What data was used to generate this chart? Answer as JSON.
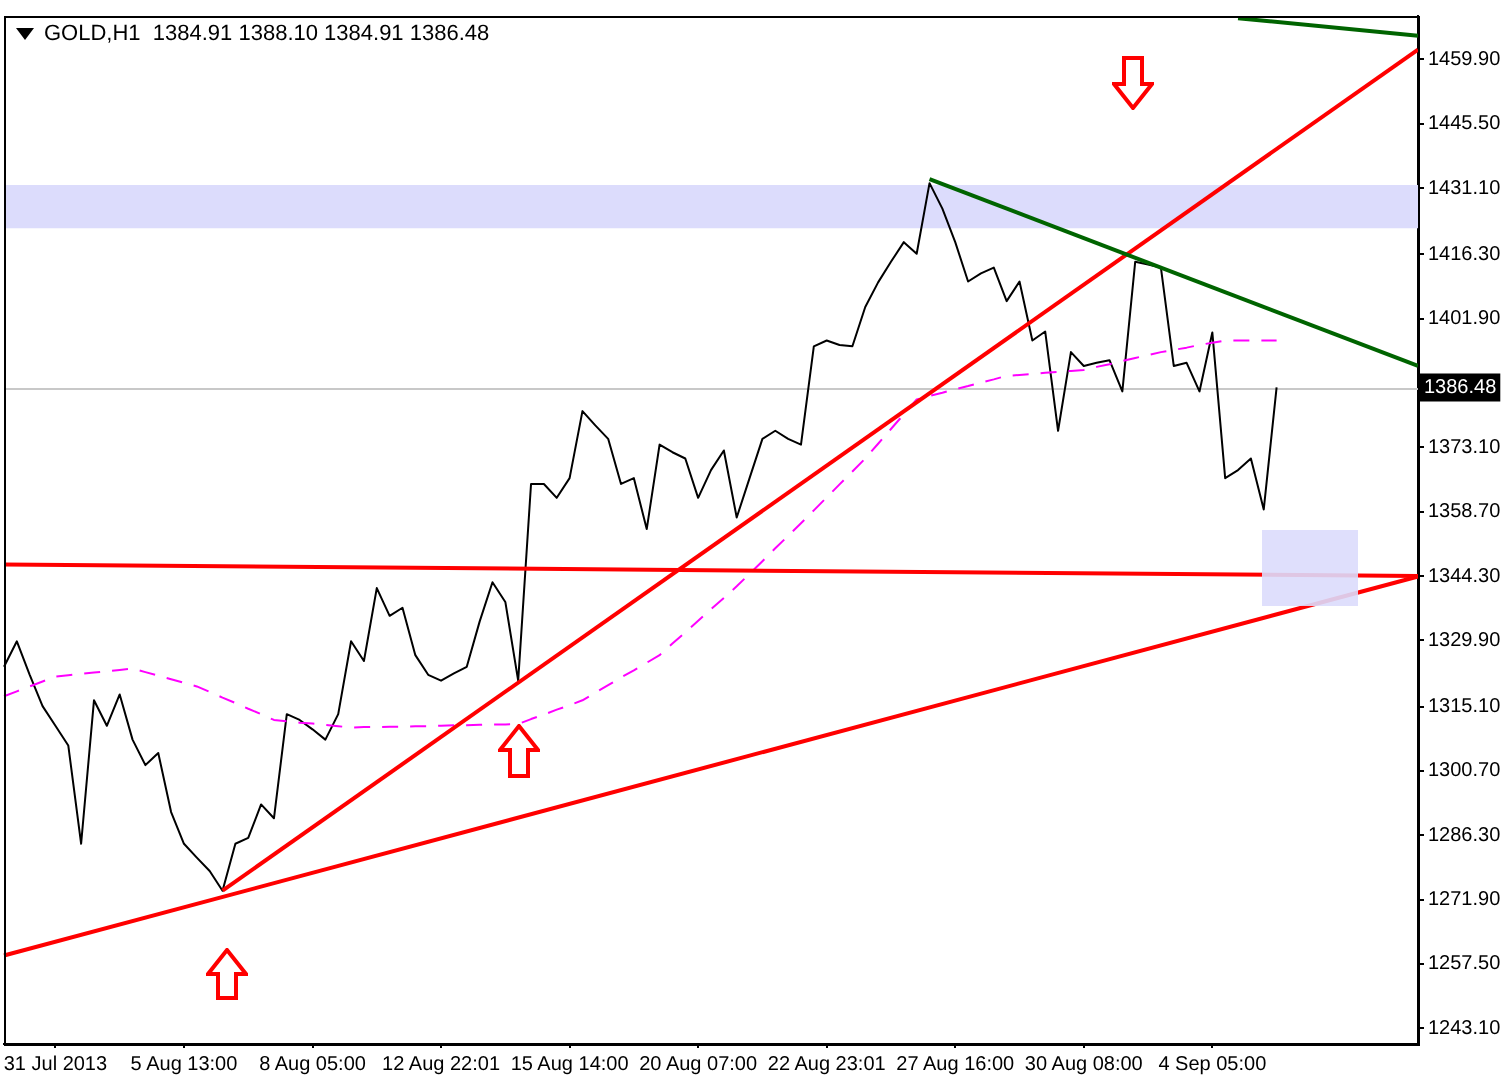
{
  "chart_data": {
    "type": "line",
    "title": "GOLD,H1  1384.91 1388.10 1384.91 1386.48",
    "legend": false,
    "grid": false,
    "marker": "none",
    "categories": [
      null,
      null,
      null,
      null,
      "31 Jul 2013",
      null,
      null,
      null,
      null,
      null,
      null,
      null,
      null,
      null,
      "5 Aug 13:00",
      null,
      null,
      null,
      null,
      null,
      null,
      null,
      null,
      null,
      "8 Aug 05:00",
      null,
      null,
      null,
      null,
      null,
      null,
      null,
      null,
      null,
      "12 Aug 22:01",
      null,
      null,
      null,
      null,
      null,
      null,
      null,
      null,
      null,
      "15 Aug 14:00",
      null,
      null,
      null,
      null,
      null,
      null,
      null,
      null,
      null,
      "20 Aug 07:00",
      null,
      null,
      null,
      null,
      null,
      null,
      null,
      null,
      null,
      "22 Aug 23:01",
      null,
      null,
      null,
      null,
      null,
      null,
      null,
      null,
      null,
      "27 Aug 16:00",
      null,
      null,
      null,
      null,
      null,
      null,
      null,
      null,
      null,
      "30 Aug 08:00",
      null,
      null,
      null,
      null,
      null,
      null,
      null,
      null,
      null,
      "4 Sep 05:00",
      null,
      null,
      null,
      null,
      null,
      null,
      null,
      null,
      null,
      null,
      null,
      null,
      null,
      null,
      null,
      null
    ],
    "ylim": [
      1239.6,
      1469.6
    ],
    "yticks": [
      {
        "value": 1243.1,
        "label": "1243.10"
      },
      {
        "value": 1257.5,
        "label": "1257.50"
      },
      {
        "value": 1271.9,
        "label": "1271.90"
      },
      {
        "value": 1286.3,
        "label": "1286.30"
      },
      {
        "value": 1300.7,
        "label": "1300.70"
      },
      {
        "value": 1315.1,
        "label": "1315.10"
      },
      {
        "value": 1329.9,
        "label": "1329.90"
      },
      {
        "value": 1344.3,
        "label": "1344.30"
      },
      {
        "value": 1358.7,
        "label": "1358.70"
      },
      {
        "value": 1373.1,
        "label": "1373.10"
      },
      {
        "value": 1401.9,
        "label": "1401.90"
      },
      {
        "value": 1416.3,
        "label": "1416.30"
      },
      {
        "value": 1431.1,
        "label": "1431.10"
      },
      {
        "value": 1445.5,
        "label": "1445.50"
      },
      {
        "value": 1459.9,
        "label": "1459.90"
      }
    ],
    "ref_lines": [
      {
        "axis": "y",
        "value": 1386.48,
        "label": "1386.48",
        "color": "#c8c8c8"
      }
    ],
    "bands": [
      {
        "axis": "y",
        "from": 1422.1,
        "to": 1431.8,
        "color": "#dcdcfc"
      }
    ],
    "series": [
      {
        "type": "line",
        "color": "#000000",
        "line_style": "solid",
        "values": [
          1324.0,
          1329.7,
          1322.2,
          1315.2,
          1310.8,
          1306.4,
          1284.4,
          1316.5,
          1310.8,
          1317.8,
          1307.7,
          1302.0,
          1304.7,
          1291.5,
          1284.4,
          1281.3,
          1278.3,
          1273.9,
          1284.4,
          1285.7,
          1293.2,
          1290.1,
          1313.4,
          1312.1,
          1310.0,
          1307.7,
          1313.4,
          1329.7,
          1325.3,
          1341.6,
          1335.4,
          1337.2,
          1326.6,
          1322.2,
          1320.9,
          1322.5,
          1324.0,
          1334.1,
          1342.9,
          1338.5,
          1320.9,
          1364.9,
          1364.9,
          1361.8,
          1366.2,
          1381.2,
          1378.0,
          1375.0,
          1364.9,
          1366.2,
          1354.8,
          1373.7,
          1372.0,
          1370.6,
          1361.8,
          1368.0,
          1372.4,
          1357.4,
          1366.2,
          1375.0,
          1376.8,
          1375.0,
          1373.7,
          1395.7,
          1397.0,
          1396.0,
          1395.7,
          1404.5,
          1410.0,
          1414.6,
          1419.0,
          1416.4,
          1432.2,
          1426.5,
          1419.0,
          1410.2,
          1412.0,
          1413.3,
          1405.8,
          1410.2,
          1397.0,
          1399.0,
          1376.8,
          1394.4,
          1391.3,
          1392.0,
          1392.6,
          1385.6,
          1414.6,
          1414.0,
          1413.3,
          1391.3,
          1392.0,
          1385.6,
          1398.8,
          1366.2,
          1368.0,
          1370.6,
          1359.2,
          1386.5,
          null,
          null,
          null,
          null,
          null,
          null,
          null,
          null,
          null,
          null,
          null
        ]
      },
      {
        "type": "line",
        "color": "#ff00ff",
        "line_style": "dashed",
        "values": [
          1317.4,
          1318.5,
          1319.6,
          1320.7,
          1321.8,
          1322.1,
          1322.4,
          1322.7,
          1323.0,
          1323.3,
          1323.6,
          1322.8,
          1322.0,
          1321.2,
          1320.4,
          1319.6,
          1318.4,
          1317.1,
          1315.9,
          1314.6,
          1313.4,
          1312.1,
          1311.8,
          1311.5,
          1311.3,
          1311.0,
          1310.7,
          1310.4,
          1310.5,
          1310.5,
          1310.6,
          1310.6,
          1310.7,
          1310.7,
          1310.8,
          1310.9,
          1310.9,
          1311.0,
          1311.1,
          1311.1,
          1311.2,
          1312.3,
          1313.3,
          1314.4,
          1315.4,
          1316.5,
          1318.2,
          1319.9,
          1321.6,
          1323.2,
          1324.9,
          1326.6,
          1329.2,
          1331.7,
          1334.3,
          1336.9,
          1339.4,
          1342.0,
          1344.8,
          1347.6,
          1350.5,
          1353.3,
          1356.1,
          1359.0,
          1361.9,
          1364.8,
          1367.7,
          1370.6,
          1373.9,
          1377.2,
          1380.5,
          1383.8,
          1384.6,
          1385.3,
          1386.1,
          1386.8,
          1387.6,
          1388.3,
          1389.1,
          1389.3,
          1389.5,
          1389.8,
          1390.0,
          1390.2,
          1390.4,
          1391.1,
          1391.7,
          1392.4,
          1393.1,
          1393.7,
          1394.4,
          1394.9,
          1395.4,
          1396.0,
          1396.5,
          1397.0,
          1397.0,
          1397.0,
          1397.0,
          1397.0,
          null,
          null,
          null,
          null,
          null,
          null,
          null,
          null,
          null,
          null,
          null
        ]
      },
      {
        "type": "line",
        "color": "#ff0000",
        "line_style": "solid",
        "values": [
          1259.4,
          null,
          null,
          null,
          null,
          null,
          null,
          null,
          null,
          null,
          null,
          null,
          null,
          null,
          null,
          null,
          null,
          null,
          null,
          null,
          null,
          null,
          null,
          null,
          null,
          null,
          null,
          null,
          null,
          null,
          null,
          null,
          null,
          null,
          null,
          null,
          null,
          null,
          null,
          null,
          null,
          null,
          null,
          null,
          null,
          null,
          null,
          null,
          null,
          null,
          null,
          null,
          null,
          null,
          null,
          null,
          null,
          null,
          null,
          null,
          null,
          null,
          null,
          null,
          null,
          null,
          null,
          null,
          null,
          null,
          null,
          null,
          null,
          null,
          null,
          null,
          null,
          null,
          null,
          null,
          null,
          null,
          null,
          null,
          null,
          null,
          null,
          null,
          null,
          null,
          null,
          null,
          null,
          null,
          null,
          null,
          null,
          null,
          null,
          null,
          null,
          null,
          null,
          null,
          null,
          null,
          null,
          null,
          null,
          null,
          1344.2
        ]
      },
      {
        "type": "line",
        "color": "#ff0000",
        "line_style": "solid",
        "values": [
          null,
          null,
          null,
          null,
          null,
          null,
          null,
          null,
          null,
          null,
          null,
          null,
          null,
          null,
          null,
          null,
          null,
          1273.9,
          null,
          null,
          null,
          null,
          null,
          null,
          null,
          null,
          null,
          null,
          null,
          null,
          null,
          null,
          null,
          null,
          null,
          null,
          null,
          null,
          null,
          null,
          null,
          null,
          null,
          null,
          null,
          null,
          null,
          null,
          null,
          null,
          null,
          null,
          null,
          null,
          null,
          null,
          null,
          null,
          null,
          null,
          null,
          null,
          null,
          null,
          null,
          null,
          null,
          null,
          null,
          null,
          null,
          null,
          null,
          null,
          null,
          null,
          null,
          null,
          null,
          null,
          null,
          null,
          null,
          null,
          null,
          null,
          null,
          null,
          null,
          null,
          null,
          null,
          null,
          null,
          null,
          null,
          null,
          null,
          null,
          null,
          null,
          null,
          null,
          null,
          null,
          null,
          null,
          null,
          null,
          null,
          1462.1
        ]
      },
      {
        "type": "line",
        "color": "#ff0000",
        "line_style": "solid",
        "values": [
          1346.9,
          null,
          null,
          null,
          null,
          null,
          null,
          null,
          null,
          null,
          null,
          null,
          null,
          null,
          null,
          null,
          null,
          null,
          null,
          null,
          null,
          null,
          null,
          null,
          null,
          null,
          null,
          null,
          null,
          null,
          null,
          null,
          null,
          null,
          null,
          null,
          null,
          null,
          null,
          null,
          null,
          null,
          null,
          null,
          null,
          null,
          null,
          null,
          null,
          null,
          null,
          null,
          null,
          null,
          null,
          null,
          null,
          null,
          null,
          null,
          null,
          null,
          null,
          null,
          null,
          null,
          null,
          null,
          null,
          null,
          null,
          null,
          null,
          null,
          null,
          null,
          null,
          null,
          null,
          null,
          null,
          null,
          null,
          null,
          null,
          null,
          null,
          null,
          null,
          null,
          null,
          null,
          null,
          null,
          null,
          null,
          null,
          null,
          null,
          null,
          null,
          null,
          null,
          null,
          null,
          null,
          null,
          null,
          null,
          null,
          1344.3
        ]
      },
      {
        "type": "line",
        "color": "#006400",
        "line_style": "solid",
        "values": [
          null,
          null,
          null,
          null,
          null,
          null,
          null,
          null,
          null,
          null,
          null,
          null,
          null,
          null,
          null,
          null,
          null,
          null,
          null,
          null,
          null,
          null,
          null,
          null,
          null,
          null,
          null,
          null,
          null,
          null,
          null,
          null,
          null,
          null,
          null,
          null,
          null,
          null,
          null,
          null,
          null,
          null,
          null,
          null,
          null,
          null,
          null,
          null,
          null,
          null,
          null,
          null,
          null,
          null,
          null,
          null,
          null,
          null,
          null,
          null,
          null,
          null,
          null,
          null,
          null,
          null,
          null,
          null,
          null,
          null,
          null,
          null,
          1433.1,
          null,
          null,
          null,
          null,
          null,
          null,
          null,
          null,
          null,
          null,
          null,
          null,
          null,
          null,
          null,
          null,
          null,
          null,
          null,
          null,
          null,
          null,
          null,
          null,
          null,
          null,
          null,
          null,
          null,
          null,
          null,
          null,
          null,
          null,
          null,
          null,
          null,
          1391.3
        ]
      },
      {
        "type": "line",
        "color": "#006400",
        "line_style": "solid",
        "values": [
          null,
          null,
          null,
          null,
          null,
          null,
          null,
          null,
          null,
          null,
          null,
          null,
          null,
          null,
          null,
          null,
          null,
          null,
          null,
          null,
          null,
          null,
          null,
          null,
          null,
          null,
          null,
          null,
          null,
          null,
          null,
          null,
          null,
          null,
          null,
          null,
          null,
          null,
          null,
          null,
          null,
          null,
          null,
          null,
          null,
          null,
          null,
          null,
          null,
          null,
          null,
          null,
          null,
          null,
          null,
          null,
          null,
          null,
          null,
          null,
          null,
          null,
          null,
          null,
          null,
          null,
          null,
          null,
          null,
          null,
          null,
          null,
          null,
          null,
          null,
          null,
          null,
          null,
          null,
          null,
          null,
          null,
          null,
          null,
          null,
          null,
          null,
          null,
          null,
          null,
          null,
          null,
          null,
          null,
          null,
          null,
          1469.1,
          null,
          null,
          null,
          null,
          null,
          null,
          null,
          null,
          null,
          null,
          null,
          null,
          null,
          1465.2
        ]
      }
    ]
  }
}
